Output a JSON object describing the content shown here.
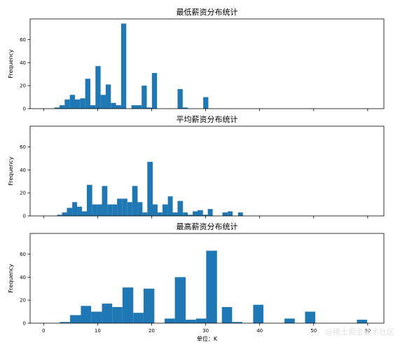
{
  "watermark": "@稀土掘金技术社区",
  "chart_data": [
    {
      "type": "bar",
      "title": "最低薪资分布统计",
      "ylabel": "Frequency",
      "xlabel": "",
      "xlim": [
        -2.5,
        63
      ],
      "ylim": [
        0,
        78
      ],
      "xticks": [
        0,
        10,
        20,
        30,
        40,
        50,
        60
      ],
      "show_xtick_labels": false,
      "yticks": [
        0,
        20,
        40,
        60
      ],
      "color": "#1f77b4",
      "bins": [
        {
          "x0": 2.0,
          "x1": 2.95,
          "value": 1
        },
        {
          "x0": 2.95,
          "x1": 3.9,
          "value": 3
        },
        {
          "x0": 3.9,
          "x1": 4.85,
          "value": 8
        },
        {
          "x0": 4.85,
          "x1": 5.8,
          "value": 12
        },
        {
          "x0": 5.8,
          "x1": 6.75,
          "value": 8
        },
        {
          "x0": 6.75,
          "x1": 7.7,
          "value": 9
        },
        {
          "x0": 7.7,
          "x1": 8.65,
          "value": 26
        },
        {
          "x0": 8.65,
          "x1": 9.6,
          "value": 3
        },
        {
          "x0": 9.6,
          "x1": 10.55,
          "value": 37
        },
        {
          "x0": 10.55,
          "x1": 11.5,
          "value": 12
        },
        {
          "x0": 11.5,
          "x1": 12.45,
          "value": 21
        },
        {
          "x0": 12.45,
          "x1": 13.4,
          "value": 5
        },
        {
          "x0": 13.4,
          "x1": 14.35,
          "value": 3
        },
        {
          "x0": 14.35,
          "x1": 15.3,
          "value": 74
        },
        {
          "x0": 16.25,
          "x1": 17.2,
          "value": 3
        },
        {
          "x0": 17.2,
          "x1": 18.15,
          "value": 3
        },
        {
          "x0": 18.15,
          "x1": 19.1,
          "value": 20
        },
        {
          "x0": 19.1,
          "x1": 20.05,
          "value": 1
        },
        {
          "x0": 20.05,
          "x1": 21.0,
          "value": 31
        },
        {
          "x0": 24.8,
          "x1": 25.75,
          "value": 17
        },
        {
          "x0": 25.75,
          "x1": 26.7,
          "value": 1
        },
        {
          "x0": 29.55,
          "x1": 30.5,
          "value": 10
        }
      ]
    },
    {
      "type": "bar",
      "title": "平均薪资分布统计",
      "ylabel": "Frequency",
      "xlabel": "",
      "xlim": [
        -2.5,
        63
      ],
      "ylim": [
        0,
        78
      ],
      "xticks": [
        0,
        10,
        20,
        30,
        40,
        50,
        60
      ],
      "show_xtick_labels": false,
      "yticks": [
        0,
        20,
        40,
        60
      ],
      "color": "#1f77b4",
      "bins": [
        {
          "x0": 2.5,
          "x1": 3.4,
          "value": 1
        },
        {
          "x0": 3.4,
          "x1": 4.3,
          "value": 3
        },
        {
          "x0": 4.3,
          "x1": 5.3,
          "value": 7
        },
        {
          "x0": 5.3,
          "x1": 6.2,
          "value": 12
        },
        {
          "x0": 6.2,
          "x1": 7.1,
          "value": 8
        },
        {
          "x0": 7.1,
          "x1": 8.0,
          "value": 4
        },
        {
          "x0": 8.0,
          "x1": 9.0,
          "value": 27
        },
        {
          "x0": 9.0,
          "x1": 9.9,
          "value": 10
        },
        {
          "x0": 9.9,
          "x1": 10.8,
          "value": 10
        },
        {
          "x0": 10.8,
          "x1": 11.8,
          "value": 26
        },
        {
          "x0": 11.8,
          "x1": 12.7,
          "value": 10
        },
        {
          "x0": 12.7,
          "x1": 13.6,
          "value": 10
        },
        {
          "x0": 13.6,
          "x1": 14.6,
          "value": 15
        },
        {
          "x0": 14.6,
          "x1": 15.5,
          "value": 15
        },
        {
          "x0": 15.5,
          "x1": 16.4,
          "value": 12
        },
        {
          "x0": 16.4,
          "x1": 17.4,
          "value": 26
        },
        {
          "x0": 17.4,
          "x1": 18.3,
          "value": 12
        },
        {
          "x0": 18.3,
          "x1": 19.2,
          "value": 3
        },
        {
          "x0": 19.2,
          "x1": 20.2,
          "value": 47
        },
        {
          "x0": 20.2,
          "x1": 21.1,
          "value": 10
        },
        {
          "x0": 21.1,
          "x1": 22.0,
          "value": 3
        },
        {
          "x0": 22.0,
          "x1": 23.0,
          "value": 10
        },
        {
          "x0": 23.0,
          "x1": 23.9,
          "value": 17
        },
        {
          "x0": 23.9,
          "x1": 24.8,
          "value": 3
        },
        {
          "x0": 24.8,
          "x1": 25.8,
          "value": 13
        },
        {
          "x0": 25.8,
          "x1": 26.7,
          "value": 3
        },
        {
          "x0": 26.7,
          "x1": 27.6,
          "value": 1
        },
        {
          "x0": 27.6,
          "x1": 28.5,
          "value": 4
        },
        {
          "x0": 28.5,
          "x1": 29.5,
          "value": 5
        },
        {
          "x0": 29.5,
          "x1": 30.4,
          "value": 1
        },
        {
          "x0": 30.4,
          "x1": 31.3,
          "value": 6
        },
        {
          "x0": 33.1,
          "x1": 34.1,
          "value": 3
        },
        {
          "x0": 34.1,
          "x1": 35.0,
          "value": 4
        },
        {
          "x0": 36.0,
          "x1": 36.9,
          "value": 3
        }
      ]
    },
    {
      "type": "bar",
      "title": "最高薪资分布统计",
      "ylabel": "Frequency",
      "xlabel": "单位：K",
      "xlim": [
        -2.5,
        63
      ],
      "ylim": [
        0,
        78
      ],
      "xticks": [
        0,
        10,
        20,
        30,
        40,
        50,
        60
      ],
      "show_xtick_labels": true,
      "yticks": [
        0,
        20,
        40,
        60
      ],
      "color": "#1f77b4",
      "bins": [
        {
          "x0": 3.0,
          "x1": 4.9,
          "value": 1
        },
        {
          "x0": 4.9,
          "x1": 6.9,
          "value": 7
        },
        {
          "x0": 6.9,
          "x1": 8.8,
          "value": 15
        },
        {
          "x0": 8.8,
          "x1": 10.8,
          "value": 10
        },
        {
          "x0": 10.8,
          "x1": 12.7,
          "value": 17
        },
        {
          "x0": 12.7,
          "x1": 14.6,
          "value": 14
        },
        {
          "x0": 14.6,
          "x1": 16.6,
          "value": 31
        },
        {
          "x0": 16.6,
          "x1": 18.5,
          "value": 9
        },
        {
          "x0": 18.5,
          "x1": 20.5,
          "value": 30
        },
        {
          "x0": 22.4,
          "x1": 24.3,
          "value": 4
        },
        {
          "x0": 24.3,
          "x1": 26.3,
          "value": 40
        },
        {
          "x0": 26.3,
          "x1": 28.2,
          "value": 3
        },
        {
          "x0": 28.2,
          "x1": 30.1,
          "value": 4
        },
        {
          "x0": 30.1,
          "x1": 32.1,
          "value": 63
        },
        {
          "x0": 33.0,
          "x1": 34.9,
          "value": 14
        },
        {
          "x0": 34.9,
          "x1": 36.8,
          "value": 1
        },
        {
          "x0": 38.8,
          "x1": 40.7,
          "value": 16
        },
        {
          "x0": 44.6,
          "x1": 46.5,
          "value": 4
        },
        {
          "x0": 48.4,
          "x1": 50.3,
          "value": 10
        },
        {
          "x0": 58.0,
          "x1": 59.9,
          "value": 3
        }
      ]
    }
  ]
}
